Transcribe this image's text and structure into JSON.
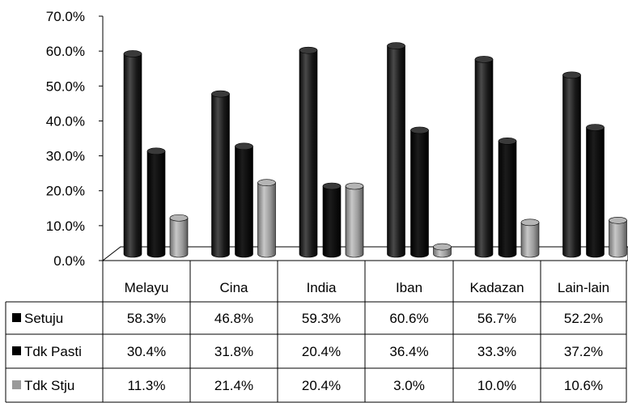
{
  "chart_data": {
    "type": "bar",
    "categories": [
      "Melayu",
      "Cina",
      "India",
      "Iban",
      "Kadazan",
      "Lain-lain"
    ],
    "series": [
      {
        "name": "Setuju",
        "color": "#1a1a1a",
        "values": [
          58.3,
          46.8,
          59.3,
          60.6,
          56.7,
          52.2
        ],
        "labels": [
          "58.3%",
          "46.8%",
          "59.3%",
          "60.6%",
          "56.7%",
          "52.2%"
        ]
      },
      {
        "name": "Tdk Pasti",
        "color": "#000000",
        "values": [
          30.4,
          31.8,
          20.4,
          36.4,
          33.3,
          37.2
        ],
        "labels": [
          "30.4%",
          "31.8%",
          "20.4%",
          "36.4%",
          "33.3%",
          "37.2%"
        ]
      },
      {
        "name": "Tdk Stju",
        "color": "#9a9a9a",
        "values": [
          11.3,
          21.4,
          20.4,
          3.0,
          10.0,
          10.6
        ],
        "labels": [
          "11.3%",
          "21.4%",
          "20.4%",
          "3.0%",
          "10.0%",
          "10.6%"
        ]
      }
    ],
    "ylim": [
      0,
      70
    ],
    "yticks": [
      "0.0%",
      "10.0%",
      "20.0%",
      "30.0%",
      "40.0%",
      "50.0%",
      "60.0%",
      "70.0%"
    ],
    "style": "3d-cylinder",
    "legend_placement": "data-table",
    "grid": false
  }
}
